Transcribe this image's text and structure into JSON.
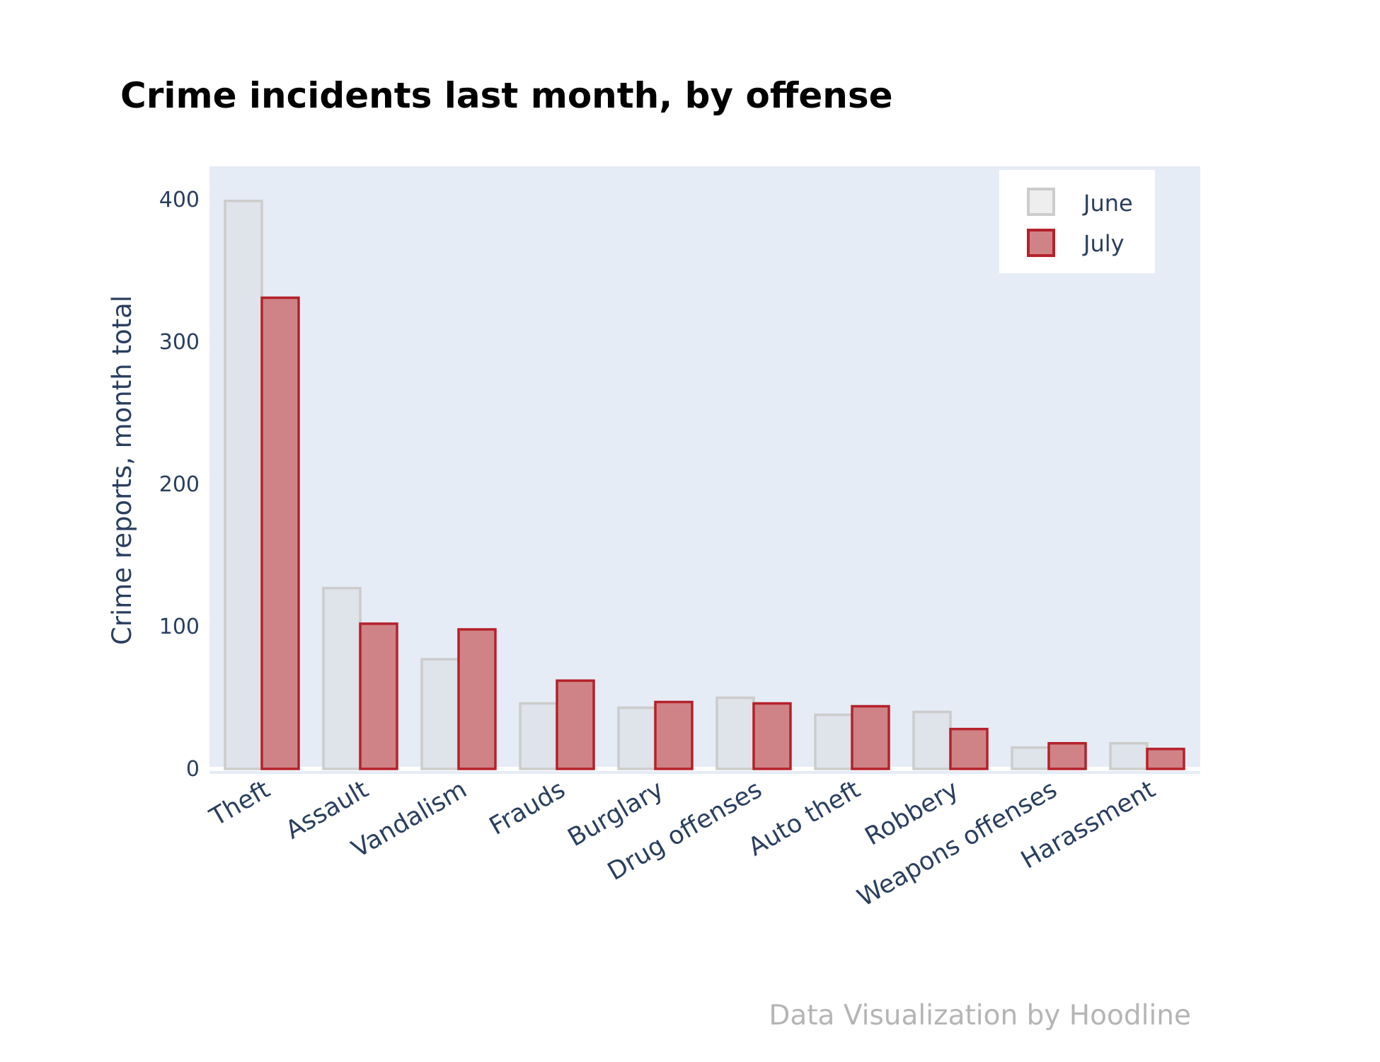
{
  "chart_data": {
    "type": "bar",
    "title": "Crime incidents last month, by offense",
    "xlabel": "",
    "ylabel": "Crime reports, month total",
    "categories": [
      "Theft",
      "Assault",
      "Vandalism",
      "Frauds",
      "Burglary",
      "Drug offenses",
      "Auto theft",
      "Robbery",
      "Weapons offenses",
      "Harassment"
    ],
    "series": [
      {
        "name": "June",
        "values": [
          399,
          127,
          77,
          46,
          43,
          50,
          38,
          40,
          15,
          18
        ],
        "fill": "#dfe3ea",
        "stroke": "#cccccc"
      },
      {
        "name": "July",
        "values": [
          331,
          102,
          98,
          62,
          47,
          46,
          44,
          28,
          18,
          14
        ],
        "fill": "#cf8387",
        "stroke": "#b5212a"
      }
    ],
    "ylim": [
      0,
      423
    ],
    "yticks": [
      0,
      100,
      200,
      300,
      400
    ],
    "grid": false,
    "legend_position": "top-right",
    "plot_background": "#e5ecf6",
    "credit": "Data Visualization by Hoodline"
  }
}
